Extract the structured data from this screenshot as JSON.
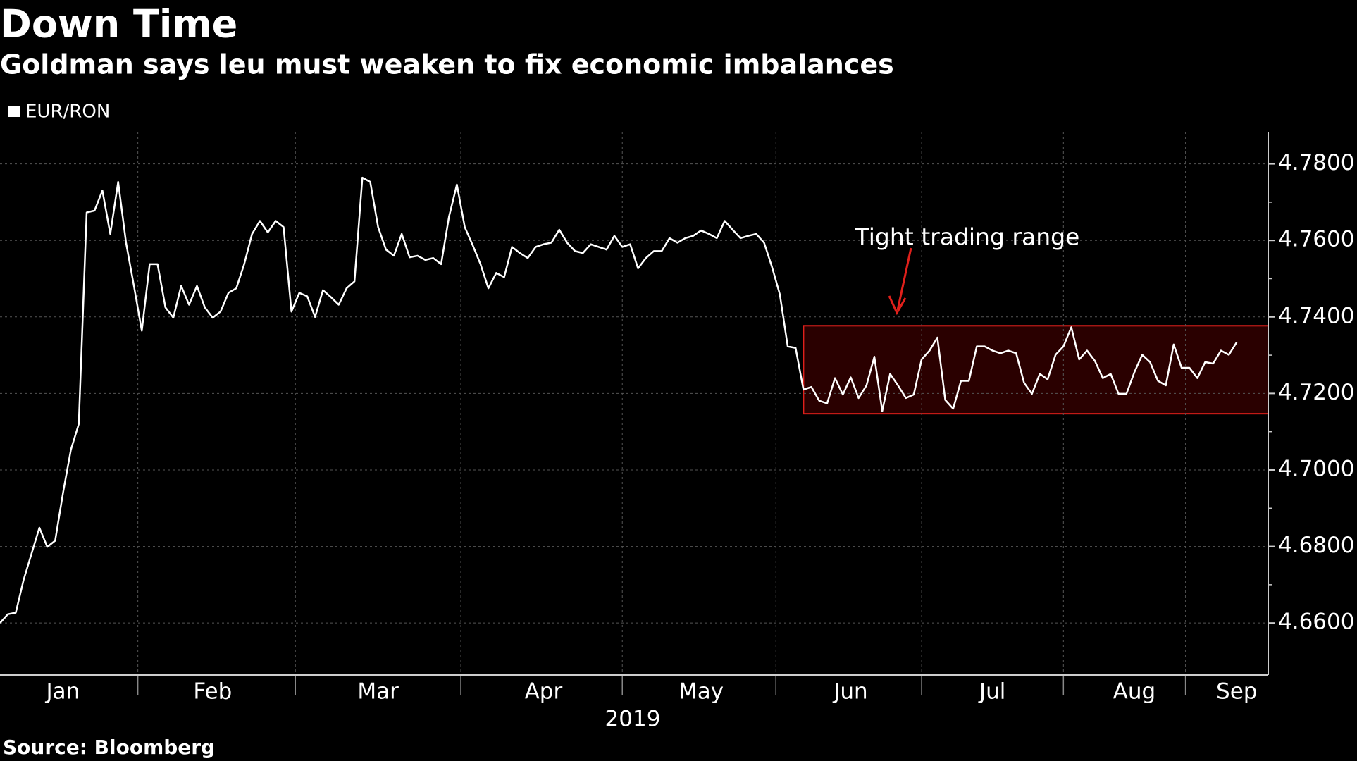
{
  "chart_data": {
    "type": "line",
    "title": "Down Time",
    "subtitle": "Goldman says leu must weaken to fix economic imbalances",
    "source": "Source: Bloomberg",
    "xlabel": "2019",
    "grid": true,
    "legend": "top-left",
    "series": [
      {
        "name": "EUR/RON",
        "color": "#ffffff",
        "values": [
          4.66,
          4.6623,
          4.6627,
          4.6713,
          4.6781,
          4.6849,
          4.6799,
          4.6815,
          4.694,
          4.7053,
          4.712,
          4.7673,
          4.7678,
          4.773,
          4.7617,
          4.7753,
          4.7594,
          4.7481,
          4.7364,
          4.7538,
          4.7538,
          4.7425,
          4.7398,
          4.7481,
          4.7432,
          4.7481,
          4.7425,
          4.7398,
          4.7414,
          4.7463,
          4.7475,
          4.7538,
          4.7617,
          4.7651,
          4.7621,
          4.7651,
          4.7635,
          4.7414,
          4.7463,
          4.7454,
          4.74,
          4.747,
          4.7452,
          4.7432,
          4.7475,
          4.7493,
          4.7764,
          4.7753,
          4.7635,
          4.7576,
          4.756,
          4.7617,
          4.7556,
          4.756,
          4.7549,
          4.7554,
          4.7538,
          4.7662,
          4.7746,
          4.7635,
          4.7588,
          4.7538,
          4.7475,
          4.7515,
          4.7504,
          4.7583,
          4.7567,
          4.7554,
          4.7583,
          4.759,
          4.7594,
          4.7628,
          4.7594,
          4.7572,
          4.7567,
          4.759,
          4.7583,
          4.7576,
          4.7612,
          4.7583,
          4.759,
          4.7527,
          4.7554,
          4.7572,
          4.7572,
          4.7606,
          4.7594,
          4.7606,
          4.7612,
          4.7626,
          4.7617,
          4.7606,
          4.7651,
          4.7628,
          4.7606,
          4.7612,
          4.7617,
          4.7594,
          4.7531,
          4.7459,
          4.7323,
          4.7319,
          4.721,
          4.7217,
          4.7181,
          4.7174,
          4.724,
          4.7197,
          4.7242,
          4.7188,
          4.7221,
          4.7296,
          4.7154,
          4.7251,
          4.7221,
          4.7188,
          4.7197,
          4.7289,
          4.7312,
          4.7346,
          4.7183,
          4.716,
          4.7233,
          4.7233,
          4.7323,
          4.7323,
          4.7312,
          4.7305,
          4.7312,
          4.7305,
          4.7228,
          4.7199,
          4.7251,
          4.7237,
          4.7301,
          4.7323,
          4.7373,
          4.7289,
          4.7312,
          4.7285,
          4.724,
          4.7251,
          4.7199,
          4.7199,
          4.7255,
          4.7301,
          4.7282,
          4.7233,
          4.7221,
          4.7328,
          4.7267,
          4.7267,
          4.724,
          4.7282,
          4.7278,
          4.7312,
          4.7301,
          4.7334
        ]
      }
    ],
    "xlim": [
      0,
      161
    ],
    "xticks": [
      {
        "value": 8,
        "label": "Jan"
      },
      {
        "value": 27,
        "label": "Feb"
      },
      {
        "value": 48,
        "label": "Mar"
      },
      {
        "value": 69,
        "label": "Apr"
      },
      {
        "value": 89,
        "label": "May"
      },
      {
        "value": 108,
        "label": "Jun"
      },
      {
        "value": 126,
        "label": "Jul"
      },
      {
        "value": 144,
        "label": "Aug"
      },
      {
        "value": 157,
        "label": "Sep"
      }
    ],
    "ylim": [
      4.6464,
      4.7884
    ],
    "yticks": [
      {
        "value": 4.66,
        "label": "4.6600"
      },
      {
        "value": 4.68,
        "label": "4.6800"
      },
      {
        "value": 4.7,
        "label": "4.7000"
      },
      {
        "value": 4.72,
        "label": "4.7200"
      },
      {
        "value": 4.74,
        "label": "4.7400"
      },
      {
        "value": 4.76,
        "label": "4.7600"
      },
      {
        "value": 4.78,
        "label": "4.7800"
      }
    ],
    "annotation": {
      "text": "Tight trading range",
      "color": "#e0201b",
      "fill": "#2a0000",
      "xrange": [
        102,
        161
      ],
      "yrange": [
        4.7147,
        4.7377
      ]
    }
  }
}
